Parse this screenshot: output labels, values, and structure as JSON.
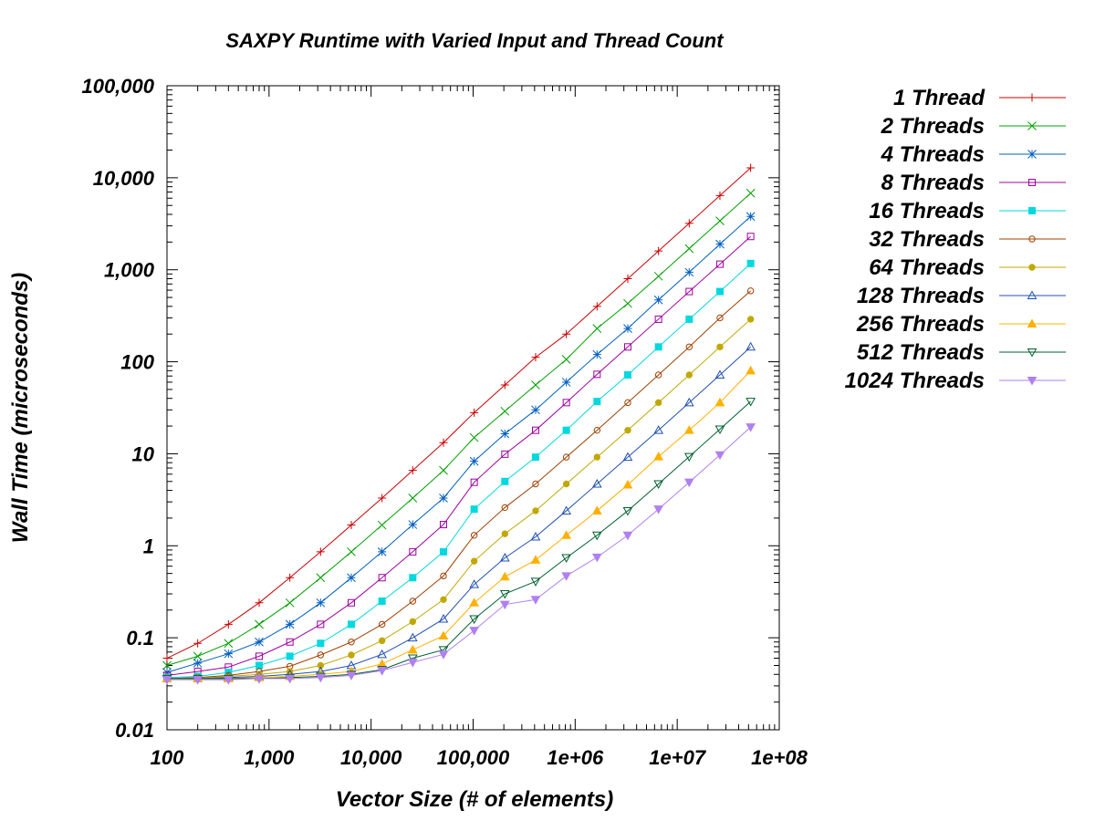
{
  "chart_data": {
    "type": "line",
    "title": "SAXPY Runtime with Varied Input and Thread Count",
    "xlabel": "Vector Size (# of elements)",
    "ylabel": "Wall Time (microseconds)",
    "x_scale": "log",
    "y_scale": "log",
    "xlim": [
      100,
      100000000
    ],
    "ylim": [
      0.01,
      100000
    ],
    "x_ticks": [
      100,
      1000,
      10000,
      100000,
      1000000,
      10000000,
      100000000
    ],
    "x_tick_labels": [
      "100",
      "1,000",
      "10,000",
      "100,000",
      "1e+06",
      "1e+07",
      "1e+08"
    ],
    "y_ticks": [
      0.01,
      0.1,
      1,
      10,
      100,
      1000,
      10000,
      100000
    ],
    "y_tick_labels": [
      "0.01",
      "0.1",
      "1",
      "10",
      "100",
      "1,000",
      "10,000",
      "100,000"
    ],
    "grid": false,
    "legend_position": "outside-right-top",
    "x": [
      100,
      200,
      400,
      800,
      1600,
      3200,
      6400,
      12800,
      25600,
      51200,
      102400,
      204800,
      409600,
      819200,
      1638400,
      3276800,
      6553600,
      13107200,
      26214400,
      52428800
    ],
    "series": [
      {
        "name": "1 Thread",
        "color": "#cc0000",
        "marker": "plus",
        "values": [
          0.06,
          0.087,
          0.14,
          0.24,
          0.45,
          0.86,
          1.68,
          3.3,
          6.6,
          13.2,
          28,
          56,
          112,
          200,
          400,
          800,
          1600,
          3200,
          6400,
          12800
        ]
      },
      {
        "name": "2 Threads",
        "color": "#00a000",
        "marker": "cross",
        "values": [
          0.05,
          0.063,
          0.087,
          0.14,
          0.24,
          0.45,
          0.86,
          1.68,
          3.3,
          6.6,
          15,
          29,
          56,
          106,
          230,
          430,
          850,
          1700,
          3400,
          6800
        ]
      },
      {
        "name": "4 Threads",
        "color": "#0060c0",
        "marker": "star",
        "values": [
          0.042,
          0.053,
          0.067,
          0.09,
          0.14,
          0.24,
          0.45,
          0.86,
          1.7,
          3.3,
          8.3,
          16.5,
          30,
          60,
          120,
          230,
          470,
          940,
          1900,
          3800
        ]
      },
      {
        "name": "8 Threads",
        "color": "#a000a0",
        "marker": "square-open",
        "values": [
          0.039,
          0.043,
          0.048,
          0.063,
          0.09,
          0.14,
          0.24,
          0.45,
          0.86,
          1.7,
          4.9,
          9.9,
          18,
          36,
          73,
          145,
          290,
          580,
          1150,
          2300
        ]
      },
      {
        "name": "16 Threads",
        "color": "#00d8e0",
        "marker": "square-filled",
        "values": [
          0.037,
          0.038,
          0.042,
          0.05,
          0.063,
          0.087,
          0.14,
          0.25,
          0.45,
          0.86,
          2.5,
          5,
          9.2,
          18,
          37,
          72,
          145,
          290,
          580,
          1170
        ]
      },
      {
        "name": "32 Threads",
        "color": "#a04000",
        "marker": "circle-open",
        "values": [
          0.036,
          0.037,
          0.039,
          0.043,
          0.049,
          0.065,
          0.09,
          0.14,
          0.25,
          0.47,
          1.3,
          2.6,
          4.7,
          9.2,
          18,
          36,
          72,
          145,
          300,
          590
        ]
      },
      {
        "name": "64 Threads",
        "color": "#c0a800",
        "marker": "circle-filled",
        "values": [
          0.036,
          0.036,
          0.038,
          0.04,
          0.043,
          0.05,
          0.065,
          0.093,
          0.15,
          0.26,
          0.68,
          1.35,
          2.4,
          4.7,
          9.2,
          18,
          36,
          72,
          145,
          290
        ]
      },
      {
        "name": "128 Threads",
        "color": "#2050b0",
        "marker": "triangle-open",
        "values": [
          0.036,
          0.036,
          0.037,
          0.038,
          0.04,
          0.043,
          0.05,
          0.066,
          0.1,
          0.16,
          0.38,
          0.74,
          1.25,
          2.4,
          4.7,
          9.2,
          18,
          36,
          72,
          145
        ]
      },
      {
        "name": "256 Threads",
        "color": "#ffb000",
        "marker": "triangle-filled",
        "values": [
          0.036,
          0.036,
          0.036,
          0.037,
          0.038,
          0.04,
          0.043,
          0.052,
          0.074,
          0.105,
          0.24,
          0.46,
          0.7,
          1.3,
          2.4,
          4.6,
          9.3,
          18,
          36,
          80
        ]
      },
      {
        "name": "512 Threads",
        "color": "#006030",
        "marker": "triangle-down-open",
        "values": [
          0.036,
          0.036,
          0.036,
          0.036,
          0.037,
          0.038,
          0.04,
          0.045,
          0.06,
          0.074,
          0.16,
          0.3,
          0.41,
          0.74,
          1.3,
          2.4,
          4.7,
          9.3,
          18.5,
          37
        ]
      },
      {
        "name": "1024 Threads",
        "color": "#b080f0",
        "marker": "triangle-down-filled",
        "values": [
          0.035,
          0.035,
          0.035,
          0.036,
          0.036,
          0.037,
          0.039,
          0.044,
          0.054,
          0.066,
          0.12,
          0.23,
          0.26,
          0.47,
          0.75,
          1.3,
          2.5,
          4.9,
          9.7,
          19.5
        ]
      }
    ]
  }
}
